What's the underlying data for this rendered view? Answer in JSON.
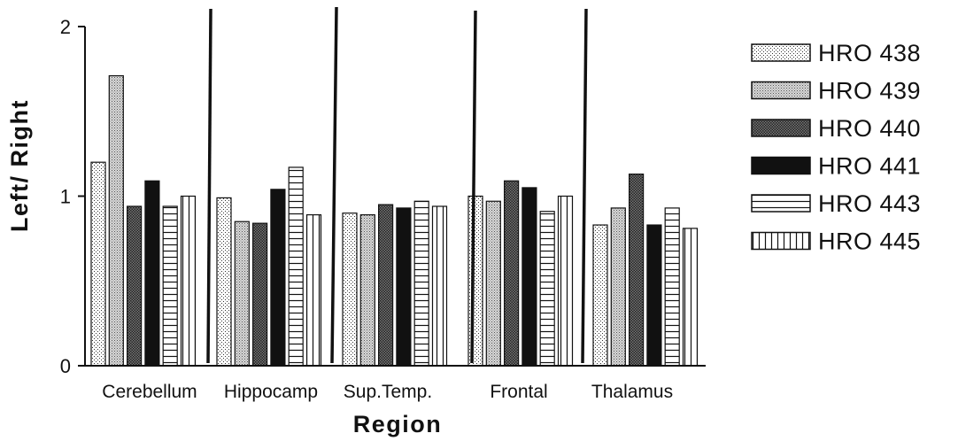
{
  "chart_data": {
    "type": "bar",
    "xlabel": "Region",
    "ylabel": "Left/ Right",
    "ylim": [
      0,
      2
    ],
    "yticks": [
      "0",
      "1",
      "2"
    ],
    "categories": [
      "Cerebellum",
      "Hippocamp",
      "Sup.Temp.",
      "Frontal",
      "Thalamus"
    ],
    "series": [
      {
        "name": "HRO 438",
        "pattern": "dots",
        "values": [
          1.2,
          0.99,
          0.9,
          1.0,
          0.83
        ]
      },
      {
        "name": "HRO 439",
        "pattern": "light-hatch",
        "values": [
          1.71,
          0.85,
          0.89,
          0.97,
          0.93
        ]
      },
      {
        "name": "HRO 440",
        "pattern": "crosshatch",
        "values": [
          0.94,
          0.84,
          0.95,
          1.09,
          1.13
        ]
      },
      {
        "name": "HRO 441",
        "pattern": "solid",
        "values": [
          1.09,
          1.04,
          0.93,
          1.05,
          0.83
        ]
      },
      {
        "name": "HRO 443",
        "pattern": "horizontal",
        "values": [
          0.94,
          1.17,
          0.97,
          0.91,
          0.93
        ]
      },
      {
        "name": "HRO 445",
        "pattern": "vertical",
        "values": [
          1.0,
          0.89,
          0.94,
          1.0,
          0.81
        ]
      }
    ],
    "legend": "right",
    "grid": false
  }
}
